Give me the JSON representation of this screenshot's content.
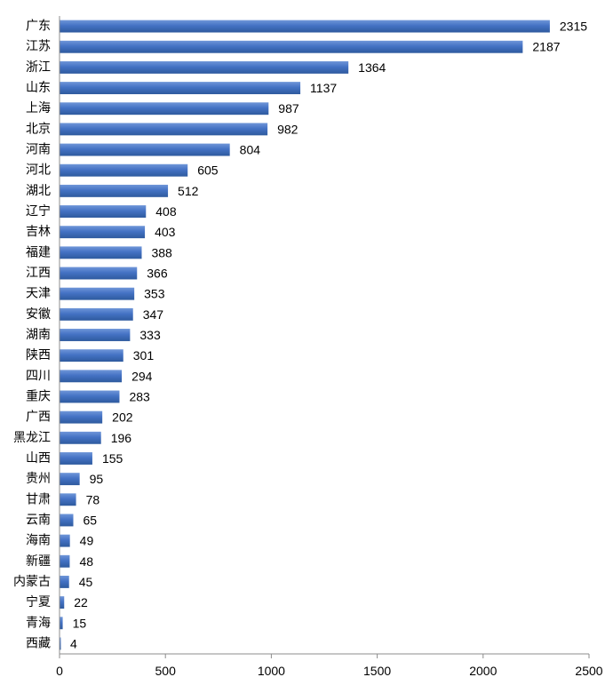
{
  "chart_data": {
    "type": "bar",
    "orientation": "horizontal",
    "categories": [
      "广东",
      "江苏",
      "浙江",
      "山东",
      "上海",
      "北京",
      "河南",
      "河北",
      "湖北",
      "辽宁",
      "吉林",
      "福建",
      "江西",
      "天津",
      "安徽",
      "湖南",
      "陕西",
      "四川",
      "重庆",
      "广西",
      "黑龙江",
      "山西",
      "贵州",
      "甘肃",
      "云南",
      "海南",
      "新疆",
      "内蒙古",
      "宁夏",
      "青海",
      "西藏"
    ],
    "values": [
      2315,
      2187,
      1364,
      1137,
      987,
      982,
      804,
      605,
      512,
      408,
      403,
      388,
      366,
      353,
      347,
      333,
      301,
      294,
      283,
      202,
      196,
      155,
      95,
      78,
      65,
      49,
      48,
      45,
      22,
      15,
      4
    ],
    "xlim": [
      0,
      2500
    ],
    "xticks": [
      0,
      500,
      1000,
      1500,
      2000,
      2500
    ],
    "title": "",
    "xlabel": "",
    "ylabel": "",
    "grid": false,
    "bar_color": "#4472c4",
    "bar_color_dark": "#2e5a9e",
    "bar_color_light": "#6f96d8",
    "axis_color": "#8c8c8c"
  }
}
